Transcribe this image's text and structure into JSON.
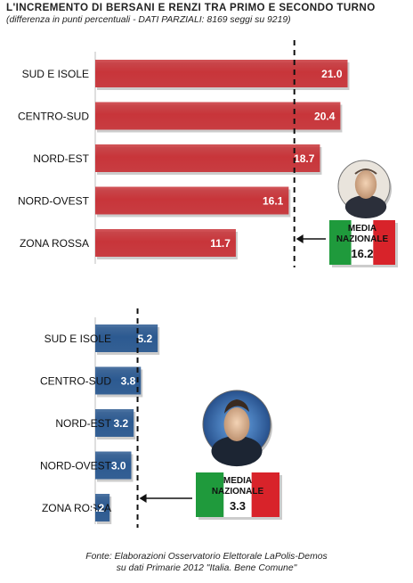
{
  "title": "L'INCREMENTO DI BERSANI E RENZI TRA PRIMO E SECONDO TURNO",
  "subtitle": "(differenza in punti percentuali - DATI PARZIALI: 8169 seggi su 9219)",
  "chart_data": [
    {
      "type": "bar",
      "orientation": "horizontal",
      "categories": [
        "SUD E ISOLE",
        "CENTRO-SUD",
        "NORD-EST",
        "NORD-OVEST",
        "ZONA ROSSA"
      ],
      "values": [
        21.0,
        20.4,
        18.7,
        16.1,
        11.7
      ],
      "value_labels": [
        "21.0",
        "20.4",
        "18.7",
        "16.1",
        "11.7"
      ],
      "xlim": [
        0,
        24
      ],
      "bar_color": "#c8353a",
      "reference_line": {
        "value": 16.2,
        "style": "dashed"
      },
      "average_box": {
        "line1": "MEDIA",
        "line2": "NAZIONALE",
        "value": "16.2"
      },
      "portrait_icon": "bersani-photo"
    },
    {
      "type": "bar",
      "orientation": "horizontal",
      "categories": [
        "SUD E ISOLE",
        "CENTRO-SUD",
        "NORD-EST",
        "NORD-OVEST",
        "ZONA ROSSA"
      ],
      "values": [
        5.2,
        3.8,
        3.2,
        3.0,
        1.2
      ],
      "value_labels": [
        "5.2",
        "3.8",
        "3.2",
        "3.0",
        "1.2"
      ],
      "xlim": [
        0,
        24
      ],
      "bar_color": "#2c5a91",
      "reference_line": {
        "value": 3.3,
        "style": "dashed"
      },
      "average_box": {
        "line1": "MEDIA",
        "line2": "NAZIONALE",
        "value": "3.3"
      },
      "portrait_icon": "renzi-photo"
    }
  ],
  "footer": {
    "line1": "Fonte: Elaborazioni Osservatorio Elettorale LaPolis-Demos",
    "line2": "su dati Primarie 2012 \"Italia. Bene Comune\""
  },
  "colors": {
    "flag_green": "#1f9a3c",
    "flag_white": "#ffffff",
    "flag_red": "#d8232a"
  }
}
